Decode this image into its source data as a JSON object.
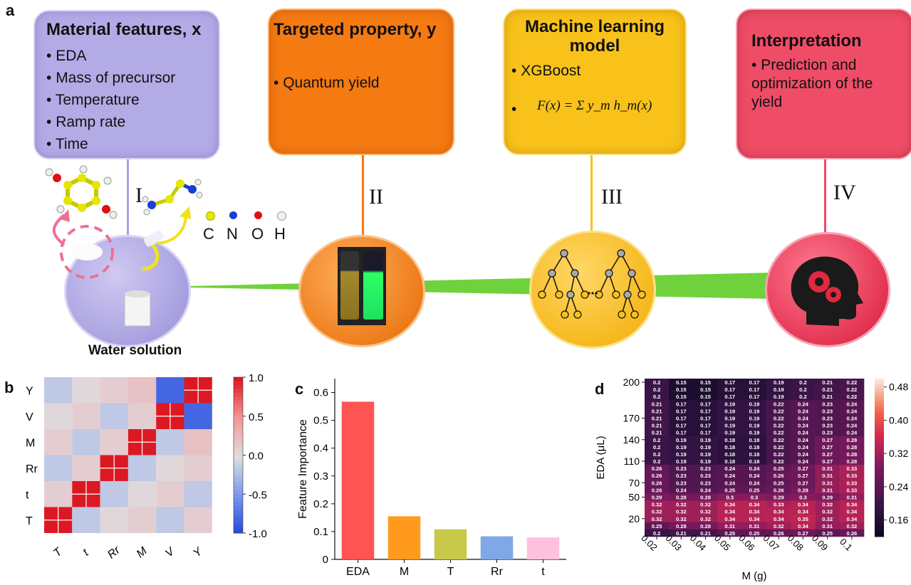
{
  "panel_labels": {
    "a": "a",
    "b": "b",
    "c": "c",
    "d": "d"
  },
  "workflow": {
    "features": {
      "title": "Material features, x",
      "items": [
        "EDA",
        "Mass of precursor",
        "Temperature",
        "Ramp rate",
        "Time"
      ]
    },
    "target": {
      "title": "Targeted property, y",
      "items": [
        "Quantum yield"
      ]
    },
    "model": {
      "title_line1": "Machine learning",
      "title_line2": "model",
      "items": [
        "XGBoost"
      ],
      "formula": "F(x) = Σ y_m h_m(x)"
    },
    "interpretation": {
      "title": "Interpretation",
      "items": [
        "Prediction and optimization of the yield"
      ]
    },
    "stages": [
      "I",
      "II",
      "III",
      "IV"
    ],
    "water_label": "Water solution",
    "atoms": [
      {
        "label": "C",
        "color": "#e6e600"
      },
      {
        "label": "N",
        "color": "#1a3fd6"
      },
      {
        "label": "O",
        "color": "#e01010"
      },
      {
        "label": "H",
        "color": "#f0f0f0"
      }
    ],
    "colors": {
      "features": "#b2aae6",
      "target": "#f57a12",
      "model": "#f8c21a",
      "interpretation": "#ef4d67",
      "beam": "#6fd23c"
    }
  },
  "chart_data": [
    {
      "type": "heatmap",
      "panel": "b",
      "labels": [
        "T",
        "t",
        "Rr",
        "M",
        "V",
        "Y"
      ],
      "row_labels_top_to_bottom": [
        "Y",
        "V",
        "M",
        "Rr",
        "t",
        "T"
      ],
      "matrix": [
        [
          1,
          0,
          0,
          0,
          0,
          0
        ],
        [
          0,
          1,
          0,
          0,
          0,
          0
        ],
        [
          0,
          0,
          1,
          0,
          0,
          0
        ],
        [
          0,
          0,
          0,
          1,
          0,
          0.2
        ],
        [
          0,
          0,
          0,
          0,
          1,
          -0.8
        ],
        [
          0,
          0,
          0,
          0.2,
          -0.8,
          1
        ]
      ],
      "colorbar": {
        "ticks": [
          "1.0",
          "0.5",
          "0.0",
          "-0.5",
          "-1.0"
        ],
        "range": [
          -1,
          1
        ]
      }
    },
    {
      "type": "bar",
      "panel": "c",
      "categories": [
        "EDA",
        "M",
        "T",
        "Rr",
        "t"
      ],
      "values": [
        0.567,
        0.155,
        0.108,
        0.083,
        0.079
      ],
      "colors": [
        "#ff5454",
        "#ff9a1e",
        "#c8c84a",
        "#7fa8e6",
        "#ffc0dd"
      ],
      "ylabel": "Feature Importance",
      "ylim": [
        0,
        0.65
      ],
      "yticks": [
        "0",
        "0.1",
        "0.2",
        "0.3",
        "0.4",
        "0.5",
        "0.6"
      ]
    },
    {
      "type": "heatmap",
      "panel": "d",
      "xlabel": "M (g)",
      "ylabel": "EDA (μL)",
      "x_ticks": [
        "0.02",
        "0.03",
        "0.04",
        "0.05",
        "0.06",
        "0.07",
        "0.08",
        "0.09",
        "0.1"
      ],
      "y_ticks": [
        "200",
        "170",
        "140",
        "110",
        "70",
        "50",
        "20"
      ],
      "values": [
        [
          "0.2",
          "0.15",
          "0.15",
          "0.17",
          "0.17",
          "0.19",
          "0.2",
          "0.21",
          "0.22"
        ],
        [
          "0.2",
          "0.15",
          "0.15",
          "0.17",
          "0.17",
          "0.19",
          "0.2",
          "0.21",
          "0.22"
        ],
        [
          "0.2",
          "0.15",
          "0.15",
          "0.17",
          "0.17",
          "0.19",
          "0.2",
          "0.21",
          "0.22"
        ],
        [
          "0.21",
          "0.17",
          "0.17",
          "0.19",
          "0.19",
          "0.22",
          "0.24",
          "0.23",
          "0.24"
        ],
        [
          "0.21",
          "0.17",
          "0.17",
          "0.19",
          "0.19",
          "0.22",
          "0.24",
          "0.23",
          "0.24"
        ],
        [
          "0.21",
          "0.17",
          "0.17",
          "0.19",
          "0.19",
          "0.22",
          "0.24",
          "0.23",
          "0.24"
        ],
        [
          "0.21",
          "0.17",
          "0.17",
          "0.19",
          "0.19",
          "0.22",
          "0.24",
          "0.23",
          "0.24"
        ],
        [
          "0.21",
          "0.17",
          "0.17",
          "0.19",
          "0.19",
          "0.22",
          "0.24",
          "0.23",
          "0.24"
        ],
        [
          "0.2",
          "0.19",
          "0.19",
          "0.18",
          "0.18",
          "0.22",
          "0.24",
          "0.27",
          "0.28"
        ],
        [
          "0.2",
          "0.19",
          "0.19",
          "0.18",
          "0.18",
          "0.22",
          "0.24",
          "0.27",
          "0.28"
        ],
        [
          "0.2",
          "0.19",
          "0.19",
          "0.18",
          "0.18",
          "0.22",
          "0.24",
          "0.27",
          "0.28"
        ],
        [
          "0.2",
          "0.19",
          "0.19",
          "0.18",
          "0.18",
          "0.22",
          "0.24",
          "0.27",
          "0.28"
        ],
        [
          "0.26",
          "0.23",
          "0.23",
          "0.24",
          "0.24",
          "0.25",
          "0.27",
          "0.31",
          "0.33"
        ],
        [
          "0.26",
          "0.23",
          "0.23",
          "0.24",
          "0.24",
          "0.26",
          "0.27",
          "0.31",
          "0.33"
        ],
        [
          "0.26",
          "0.23",
          "0.23",
          "0.24",
          "0.24",
          "0.25",
          "0.27",
          "0.31",
          "0.33"
        ],
        [
          "0.26",
          "0.24",
          "0.24",
          "0.25",
          "0.25",
          "0.26",
          "0.28",
          "0.31",
          "0.33"
        ],
        [
          "0.29",
          "0.28",
          "0.28",
          "0.3",
          "0.3",
          "0.29",
          "0.3",
          "0.29",
          "0.31"
        ],
        [
          "0.32",
          "0.32",
          "0.32",
          "0.34",
          "0.34",
          "0.33",
          "0.34",
          "0.32",
          "0.34"
        ],
        [
          "0.32",
          "0.32",
          "0.32",
          "0.34",
          "0.34",
          "0.34",
          "0.34",
          "0.32",
          "0.34"
        ],
        [
          "0.32",
          "0.32",
          "0.32",
          "0.34",
          "0.34",
          "0.34",
          "0.35",
          "0.32",
          "0.34"
        ],
        [
          "0.25",
          "0.28",
          "0.28",
          "0.31",
          "0.31",
          "0.32",
          "0.34",
          "0.31",
          "0.32"
        ],
        [
          "0.2",
          "0.21",
          "0.21",
          "0.25",
          "0.25",
          "0.26",
          "0.27",
          "0.25",
          "0.26"
        ]
      ],
      "colorbar": {
        "ticks": [
          "0.48",
          "0.40",
          "0.32",
          "0.24",
          "0.16"
        ],
        "range": [
          0.12,
          0.5
        ]
      }
    }
  ]
}
